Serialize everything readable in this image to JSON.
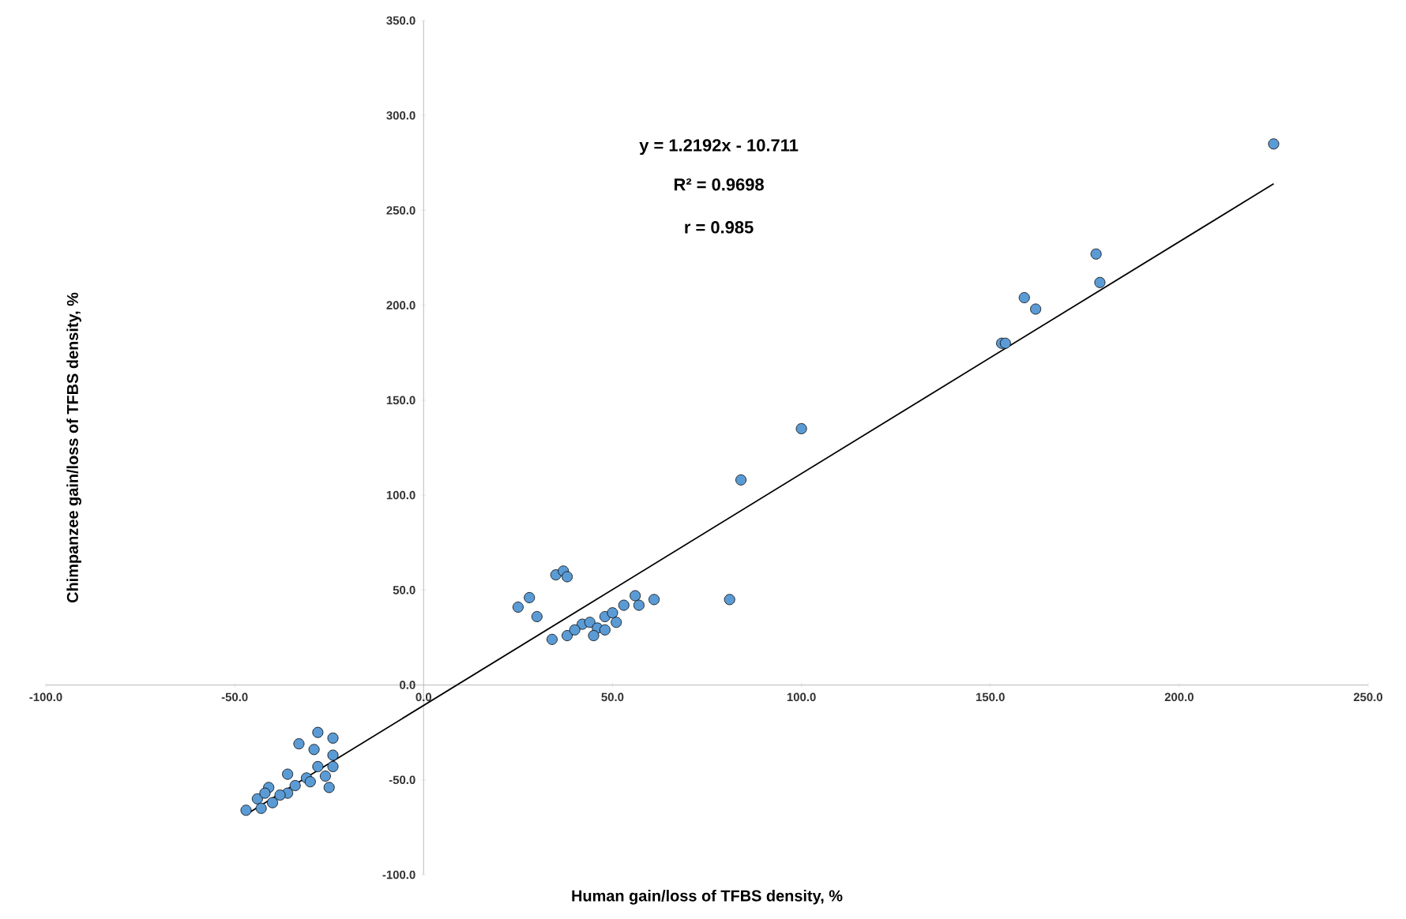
{
  "chart_data": {
    "type": "scatter",
    "xlabel": "Human gain/loss of TFBS density, %",
    "ylabel": "Chimpanzee gain/loss of TFBS density, %",
    "annotations": [
      "y = 1.2192x - 10.711",
      "R² = 0.9698",
      "r = 0.985"
    ],
    "xlim": [
      -100,
      250
    ],
    "ylim": [
      -100,
      350
    ],
    "xticks": [
      {
        "value": -100,
        "label": "-100.0"
      },
      {
        "value": -50,
        "label": "-50.0"
      },
      {
        "value": 0,
        "label": "0.0"
      },
      {
        "value": 50,
        "label": "50.0"
      },
      {
        "value": 100,
        "label": "100.0"
      },
      {
        "value": 150,
        "label": "150.0"
      },
      {
        "value": 200,
        "label": "200.0"
      },
      {
        "value": 250,
        "label": "250.0"
      }
    ],
    "yticks": [
      {
        "value": -100,
        "label": "-100.0"
      },
      {
        "value": -50,
        "label": "-50.0"
      },
      {
        "value": 0,
        "label": "0.0"
      },
      {
        "value": 50,
        "label": "50.0"
      },
      {
        "value": 100,
        "label": "100.0"
      },
      {
        "value": 150,
        "label": "150.0"
      },
      {
        "value": 200,
        "label": "200.0"
      },
      {
        "value": 250,
        "label": "250.0"
      },
      {
        "value": 300,
        "label": "300.0"
      },
      {
        "value": 350,
        "label": "350.0"
      }
    ],
    "marker": "circle",
    "series": [
      {
        "color": "#5b9bd5",
        "x": [
          225,
          178,
          179,
          159,
          162,
          153,
          154,
          100,
          84,
          35,
          37,
          38,
          28,
          25,
          30,
          34,
          38,
          81,
          42,
          44,
          46,
          48,
          50,
          53,
          56,
          57,
          61,
          45,
          48,
          51,
          40,
          -28,
          -24,
          -33,
          -24,
          -24,
          -25,
          -29,
          -36,
          -31,
          -26,
          -41,
          -44,
          -47,
          -43,
          -40,
          -36,
          -34,
          -30,
          -28,
          -38,
          -42
        ],
        "values": [
          285,
          227,
          212,
          204,
          198,
          180,
          180,
          135,
          108,
          58,
          60,
          57,
          46,
          41,
          36,
          24,
          26,
          45,
          32,
          33,
          30,
          36,
          38,
          42,
          47,
          42,
          45,
          26,
          29,
          33,
          29,
          -25,
          -28,
          -31,
          -37,
          -43,
          -54,
          -34,
          -47,
          -49,
          -48,
          -54,
          -60,
          -66,
          -65,
          -62,
          -57,
          -53,
          -51,
          -43,
          -58,
          -57
        ]
      },
      {
        "type": "line",
        "color": "#000000",
        "line_style": "solid",
        "marker": "none",
        "x": [
          -46,
          225
        ],
        "values": [
          -67,
          264
        ]
      }
    ]
  }
}
